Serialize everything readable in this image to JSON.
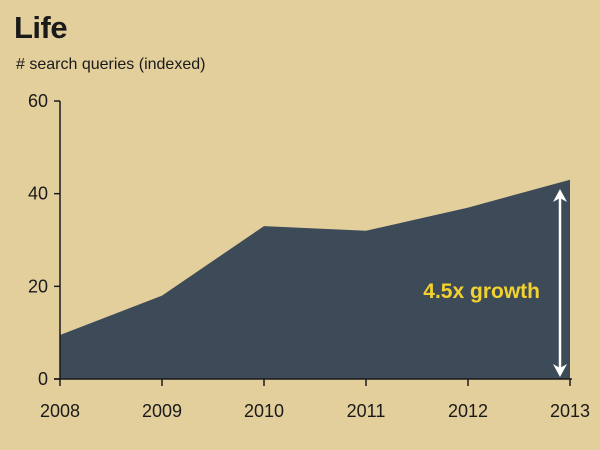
{
  "chart_data": {
    "type": "area",
    "title": "Life",
    "subtitle": "# search queries (indexed)",
    "x": [
      "2008",
      "2009",
      "2010",
      "2011",
      "2012",
      "2013"
    ],
    "series": [
      {
        "values": [
          9.5,
          18,
          33,
          32,
          37,
          43
        ]
      }
    ],
    "ylim": [
      0,
      60
    ],
    "yticks": [
      0,
      20,
      40,
      60
    ],
    "grid": false,
    "annotation": {
      "text": "4.5x growth",
      "from": 0,
      "to": 41
    },
    "colors": {
      "background": "#e3cf9c",
      "area": "#3d4b59",
      "annotation": "#f2d22e",
      "arrow": "#ffffff",
      "axis": "#1a1a1a"
    }
  }
}
